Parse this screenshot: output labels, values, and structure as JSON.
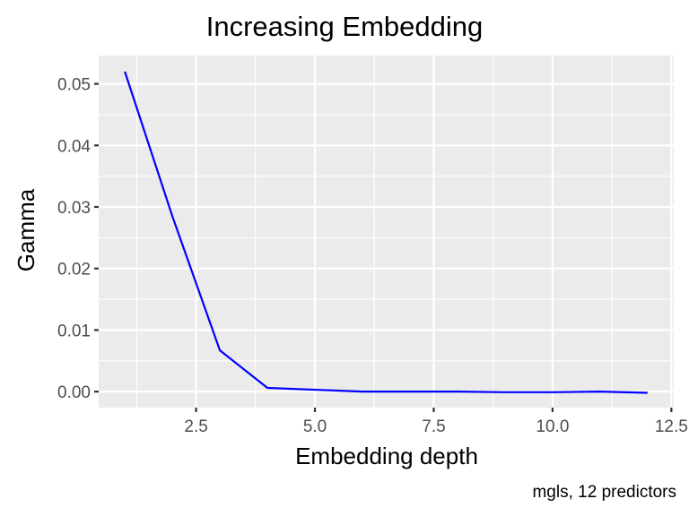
{
  "chart_data": {
    "type": "line",
    "title": "Increasing Embedding",
    "xlabel": "Embedding depth",
    "ylabel": "Gamma",
    "caption": "mgls, 12 predictors",
    "xlim": [
      0.45,
      12.55
    ],
    "ylim": [
      -0.0026,
      0.0546
    ],
    "x_ticks": [
      2.5,
      5.0,
      7.5,
      10.0,
      12.5
    ],
    "x_tick_labels": [
      "2.5",
      "5.0",
      "7.5",
      "10.0",
      "12.5"
    ],
    "y_ticks": [
      0.0,
      0.01,
      0.02,
      0.03,
      0.04,
      0.05
    ],
    "y_tick_labels": [
      "0.00",
      "0.01",
      "0.02",
      "0.03",
      "0.04",
      "0.05"
    ],
    "grid": true,
    "series": [
      {
        "color": "#0000ff",
        "x": [
          1,
          2,
          3,
          4,
          5,
          6,
          7,
          8,
          9,
          10,
          11,
          12
        ],
        "y": [
          0.052,
          0.0285,
          0.0067,
          0.0006,
          0.0003,
          0.0,
          0.0,
          0.0,
          -0.0001,
          -0.0001,
          0.0,
          -0.0002
        ]
      }
    ]
  }
}
